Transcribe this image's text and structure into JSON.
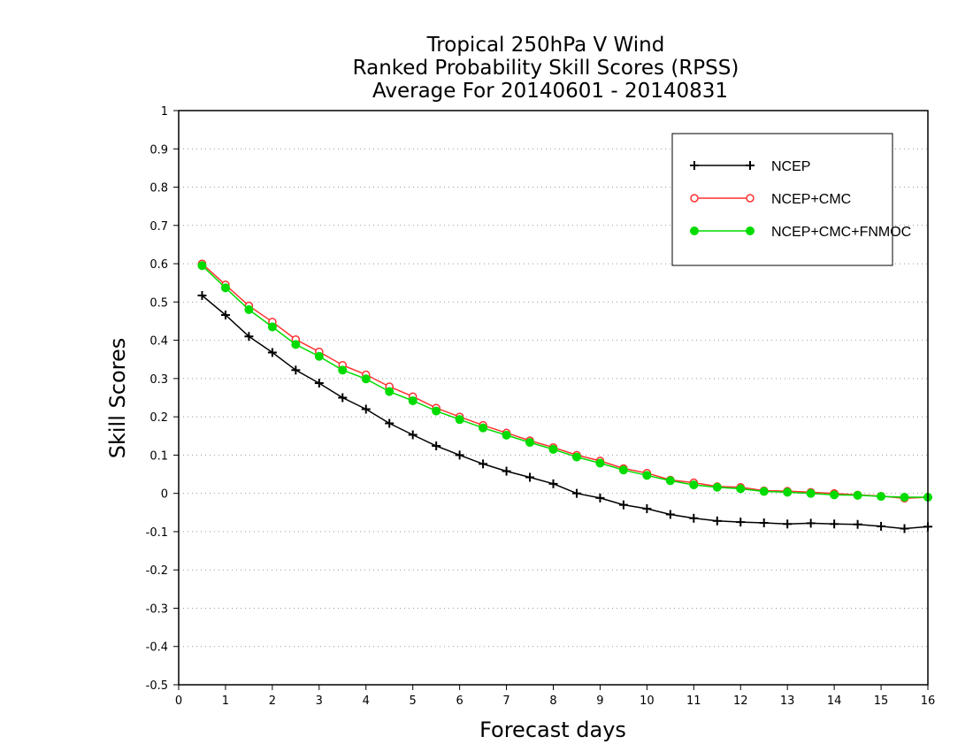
{
  "colors": {
    "NCEP": "#000000",
    "NCEP+CMC": "#ff3030",
    "NCEP+CMC+FNMOC": "#00dc00",
    "grid": "#999999"
  },
  "chart_data": {
    "type": "line",
    "title_lines": [
      "Tropical 250hPa V Wind",
      "Ranked Probability Skill Scores (RPSS)",
      "Average For 20140601 - 20140831"
    ],
    "xlabel": "Forecast days",
    "ylabel": "Skill Scores",
    "xlim": [
      0,
      16
    ],
    "ylim": [
      -0.5,
      1
    ],
    "x_ticks": [
      0,
      1,
      2,
      3,
      4,
      5,
      6,
      7,
      8,
      9,
      10,
      11,
      12,
      13,
      14,
      15,
      16
    ],
    "y_ticks": [
      -0.5,
      -0.4,
      -0.3,
      -0.2,
      -0.1,
      0,
      0.1,
      0.2,
      0.3,
      0.4,
      0.5,
      0.6,
      0.7,
      0.8,
      0.9,
      1
    ],
    "y_tick_labels": [
      "-0.5",
      "-0.4",
      "-0.3",
      "-0.2",
      "-0.1",
      "0",
      "0.1",
      "0.2",
      "0.3",
      "0.4",
      "0.5",
      "0.6",
      "0.7",
      "0.8",
      "0.9",
      "1"
    ],
    "grid": "horizontal dotted",
    "legend_position": "top-right",
    "x": [
      0.5,
      1,
      1.5,
      2,
      2.5,
      3,
      3.5,
      4,
      4.5,
      5,
      5.5,
      6,
      6.5,
      7,
      7.5,
      8,
      8.5,
      9,
      9.5,
      10,
      10.5,
      11,
      11.5,
      12,
      12.5,
      13,
      13.5,
      14,
      14.5,
      15,
      15.5,
      16
    ],
    "series": [
      {
        "name": "NCEP",
        "marker": "plus",
        "values": [
          0.517,
          0.466,
          0.41,
          0.368,
          0.322,
          0.288,
          0.25,
          0.22,
          0.183,
          0.153,
          0.124,
          0.1,
          0.077,
          0.058,
          0.042,
          0.025,
          0.0,
          -0.012,
          -0.03,
          -0.04,
          -0.055,
          -0.065,
          -0.072,
          -0.075,
          -0.077,
          -0.08,
          -0.078,
          -0.08,
          -0.081,
          -0.086,
          -0.092,
          -0.087
        ]
      },
      {
        "name": "NCEP+CMC",
        "marker": "open-circle",
        "values": [
          0.6,
          0.545,
          0.49,
          0.448,
          0.402,
          0.37,
          0.335,
          0.31,
          0.279,
          0.253,
          0.223,
          0.2,
          0.178,
          0.158,
          0.138,
          0.12,
          0.1,
          0.085,
          0.065,
          0.053,
          0.035,
          0.028,
          0.018,
          0.016,
          0.007,
          0.006,
          0.003,
          0.0,
          -0.004,
          -0.007,
          -0.013,
          -0.01
        ]
      },
      {
        "name": "NCEP+CMC+FNMOC",
        "marker": "filled-circle",
        "values": [
          0.595,
          0.537,
          0.48,
          0.435,
          0.389,
          0.358,
          0.322,
          0.299,
          0.266,
          0.242,
          0.215,
          0.193,
          0.171,
          0.152,
          0.133,
          0.115,
          0.095,
          0.079,
          0.061,
          0.047,
          0.033,
          0.022,
          0.016,
          0.012,
          0.005,
          0.003,
          0.0,
          -0.004,
          -0.005,
          -0.008,
          -0.01,
          -0.01
        ]
      }
    ]
  }
}
